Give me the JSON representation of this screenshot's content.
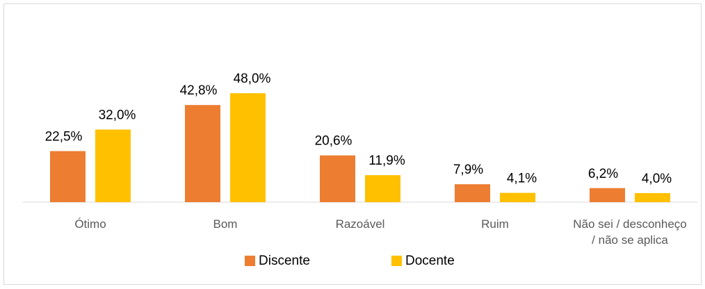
{
  "chart_data": {
    "type": "bar",
    "categories": [
      "Ótimo",
      "Bom",
      "Razoável",
      "Ruim",
      "Não sei / desconheço / não se aplica"
    ],
    "series": [
      {
        "name": "Discente",
        "color": "#ED7D31",
        "values": [
          22.5,
          42.8,
          20.6,
          7.9,
          6.2
        ],
        "value_labels": [
          "22,5%",
          "42,8%",
          "20,6%",
          "7,9%",
          "6,2%"
        ]
      },
      {
        "name": "Docente",
        "color": "#FFC000",
        "values": [
          32.0,
          48.0,
          11.9,
          4.1,
          4.0
        ],
        "value_labels": [
          "32,0%",
          "48,0%",
          "11,9%",
          "4,1%",
          "4,0%"
        ]
      }
    ],
    "ylim": [
      0,
      60
    ],
    "legend": "bottom"
  }
}
